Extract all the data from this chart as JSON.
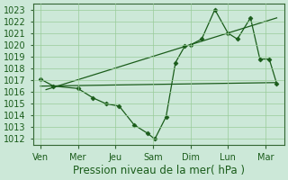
{
  "bg_color": "#cce8d8",
  "grid_color": "#99cc99",
  "line_color": "#1a5c1a",
  "marker_color": "#1a5c1a",
  "xlabel": "Pression niveau de la mer( hPa )",
  "xlabel_fontsize": 8.5,
  "tick_fontsize": 7,
  "ylim_min": 1011.5,
  "ylim_max": 1023.5,
  "yticks": [
    1012,
    1013,
    1014,
    1015,
    1016,
    1017,
    1018,
    1019,
    1020,
    1021,
    1022,
    1023
  ],
  "x_labels": [
    "Ven",
    "Mer",
    "Jeu",
    "Sam",
    "Dim",
    "Lun",
    "Mar"
  ],
  "xlim_min": -0.2,
  "xlim_max": 6.5,
  "series": [
    {
      "x": [
        0.0,
        6.3
      ],
      "y": [
        1016.5,
        1016.8
      ],
      "has_markers": false
    },
    {
      "x": [
        0.15,
        6.3
      ],
      "y": [
        1016.2,
        1022.3
      ],
      "has_markers": false
    },
    {
      "x": [
        0.0,
        0.35,
        1.0,
        1.4,
        1.75,
        2.1,
        2.5,
        2.85,
        3.05,
        3.35,
        3.6,
        3.85,
        4.0,
        4.3,
        4.65,
        5.0,
        5.25,
        5.6,
        5.85,
        6.1,
        6.3
      ],
      "y": [
        1017.1,
        1016.5,
        1016.3,
        1015.5,
        1015.0,
        1014.8,
        1013.2,
        1012.5,
        1012.0,
        1013.9,
        1018.5,
        1019.9,
        1020.0,
        1020.5,
        1023.0,
        1021.0,
        1020.5,
        1022.3,
        1018.8,
        1018.8,
        1016.7
      ],
      "has_markers": true
    }
  ]
}
